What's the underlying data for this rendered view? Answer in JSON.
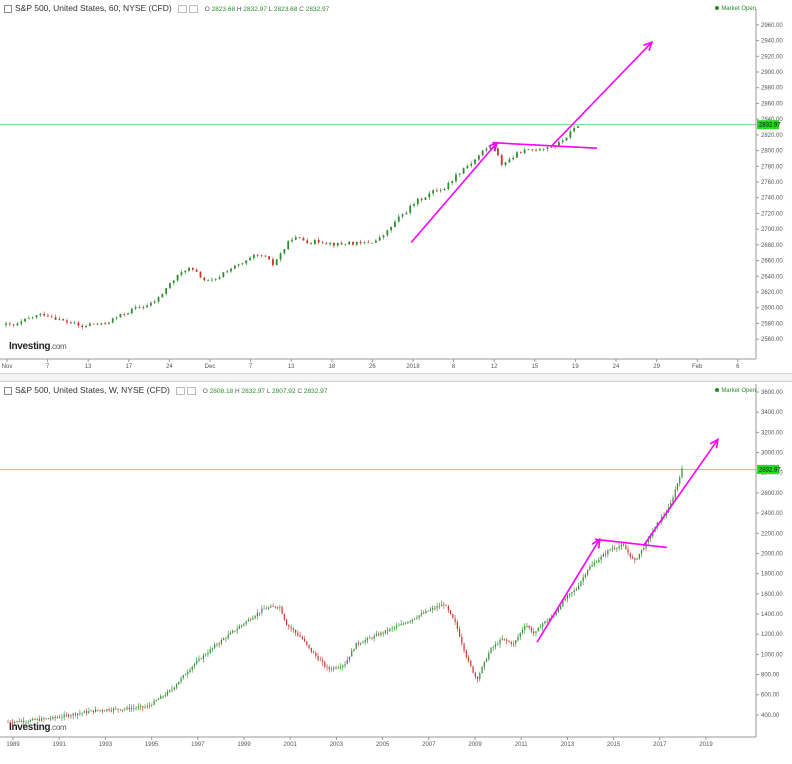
{
  "top": {
    "header": {
      "title": "S&P 500, United States, 60, NYSE (CFD)",
      "o_label": "O",
      "o_value": "2823.68",
      "h_label": "H",
      "h_value": "2832.97",
      "l_label": "L",
      "l_value": "2823.68",
      "c_label": "C",
      "c_value": "2832.97"
    },
    "market_status": "Market Open",
    "logo": "Investing",
    "logo_suffix": ".com",
    "current_price_label": "2832.97"
  },
  "bottom": {
    "header": {
      "title": "S&P 500, United States, W, NYSE (CFD)",
      "o_label": "O",
      "o_value": "2808.18",
      "h_label": "H",
      "h_value": "2832.97",
      "l_label": "L",
      "l_value": "2807.92",
      "c_label": "C",
      "c_value": "2832.97"
    },
    "market_status": "Market Open",
    "logo": "Investing",
    "logo_suffix": ".com",
    "current_price_label": "2832.97"
  },
  "colors": {
    "up": "#2e8b2e",
    "down": "#c0392b",
    "arrow": "#ff00ff",
    "price_line": "#5fd35f",
    "price_tag_bg": "#22dd22"
  },
  "chart_data": [
    {
      "type": "line",
      "title": "S&P 500, United States, 60, NYSE (CFD)",
      "xlabel": "",
      "ylabel": "",
      "ylim": [
        2550,
        2970
      ],
      "y_ticks": [
        2560,
        2580,
        2600,
        2620,
        2640,
        2660,
        2680,
        2700,
        2720,
        2740,
        2760,
        2780,
        2800,
        2820,
        2840,
        2860,
        2880,
        2900,
        2920,
        2940,
        2960
      ],
      "y_tick_labels": [
        "2560.00",
        "2580.00",
        "2600.00",
        "2620.00",
        "2640.00",
        "2660.00",
        "2680.00",
        "2700.00",
        "2720.00",
        "2740.00",
        "2760.00",
        "2780.00",
        "2800.00",
        "2820.00",
        "2840.00",
        "2860.00",
        "2880.00",
        "2900.00",
        "2920.00",
        "2940.00",
        "2960.00"
      ],
      "x_tick_labels": [
        "Nov",
        "7",
        "13",
        "17",
        "24",
        "Dec",
        "7",
        "13",
        "18",
        "26",
        "2018",
        "8",
        "12",
        "15",
        "19",
        "24",
        "29",
        "Feb",
        "6"
      ],
      "x": [
        0,
        4,
        8,
        12,
        16,
        20,
        24,
        28,
        32,
        36,
        40,
        44,
        48,
        52,
        56,
        60,
        64,
        68,
        72,
        76,
        80,
        84,
        88,
        92,
        96,
        100,
        104,
        108,
        112,
        116,
        120,
        124,
        128,
        132,
        136,
        140,
        144,
        148,
        152,
        156,
        160,
        164,
        168,
        172,
        176,
        180,
        184,
        188,
        192,
        196,
        200,
        204,
        208,
        212,
        216,
        220,
        224,
        228,
        232,
        236,
        240
      ],
      "series": [
        {
          "values": [
            2578,
            2577,
            2584,
            2589,
            2592,
            2588,
            2583,
            2580,
            2575,
            2580,
            2578,
            2584,
            2590,
            2596,
            2601,
            2603,
            2612,
            2628,
            2640,
            2651,
            2644,
            2633,
            2635,
            2647,
            2652,
            2657,
            2665,
            2666,
            2655,
            2672,
            2689,
            2687,
            2683,
            2685,
            2682,
            2680,
            2683,
            2681,
            2683,
            2686,
            2697,
            2712,
            2723,
            2735,
            2742,
            2749,
            2752,
            2766,
            2778,
            2786,
            2799,
            2807,
            2783,
            2790,
            2799,
            2800,
            2803,
            2805,
            2809,
            2820,
            2833
          ]
        }
      ],
      "annotations": [
        "arrow",
        "arrow",
        "neckline"
      ],
      "current_price": 2832.97,
      "legend": "none",
      "grid": false
    },
    {
      "type": "line",
      "title": "S&P 500, United States, W, NYSE (CFD)",
      "xlabel": "",
      "ylabel": "",
      "ylim": [
        300,
        3600
      ],
      "y_ticks": [
        400,
        600,
        800,
        1000,
        1200,
        1400,
        1600,
        1800,
        2000,
        2200,
        2400,
        2600,
        2800,
        3000,
        3200,
        3400,
        3600
      ],
      "y_tick_labels": [
        "400.00",
        "600.00",
        "800.00",
        "1000.00",
        "1200.00",
        "1400.00",
        "1600.00",
        "1800.00",
        "2000.00",
        "2200.00",
        "2400.00",
        "2600.00",
        "2800.00",
        "3000.00",
        "3200.00",
        "3400.00",
        "3600.00"
      ],
      "x_tick_labels": [
        "1989",
        "1991",
        "1993",
        "1995",
        "1997",
        "1999",
        "2001",
        "2003",
        "2005",
        "2007",
        "2009",
        "2011",
        "2013",
        "2015",
        "2017",
        "2019"
      ],
      "x": [
        1989,
        1990,
        1991,
        1992,
        1993,
        1994,
        1995,
        1996,
        1997,
        1998,
        1999,
        2000,
        2000.7,
        2001,
        2001.7,
        2002,
        2002.8,
        2003.5,
        2004,
        2005,
        2006,
        2007,
        2007.8,
        2008.3,
        2008.8,
        2009.2,
        2009.8,
        2010.3,
        2010.8,
        2011.3,
        2011.7,
        2012,
        2012.5,
        2013,
        2013.5,
        2014,
        2014.5,
        2015,
        2015.5,
        2016,
        2016.5,
        2017,
        2017.5,
        2018.05
      ],
      "series": [
        {
          "values": [
            330,
            345,
            370,
            415,
            450,
            460,
            480,
            640,
            900,
            1100,
            1280,
            1450,
            1480,
            1300,
            1150,
            1050,
            850,
            900,
            1100,
            1200,
            1300,
            1420,
            1500,
            1300,
            950,
            750,
            1050,
            1150,
            1100,
            1300,
            1200,
            1300,
            1380,
            1550,
            1650,
            1850,
            1950,
            2050,
            2080,
            1920,
            2100,
            2300,
            2450,
            2832
          ]
        }
      ],
      "annotations": [
        "arrow",
        "arrow",
        "neckline"
      ],
      "current_price": 2832.97,
      "legend": "none",
      "grid": false
    }
  ]
}
